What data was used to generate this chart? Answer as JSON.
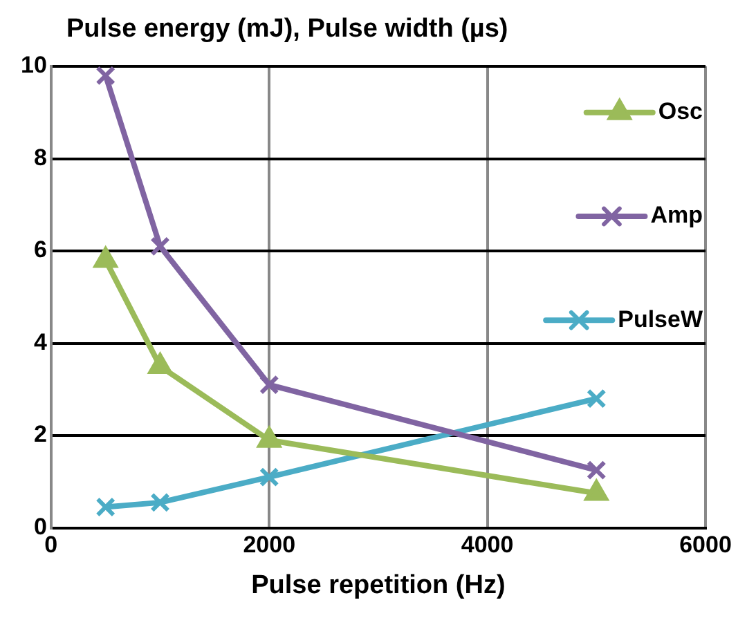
{
  "chart_data": {
    "type": "line",
    "ylabel": "Pulse energy (mJ), Pulse width (µs)",
    "xlabel": "Pulse repetition (Hz)",
    "x": [
      500,
      1000,
      2000,
      5000
    ],
    "series": [
      {
        "name": "Osc",
        "color": "#9bbb59",
        "marker": "triangle",
        "values": [
          5.8,
          3.5,
          1.9,
          0.75
        ]
      },
      {
        "name": "Amp",
        "color": "#8064a2",
        "marker": "cross",
        "values": [
          9.8,
          6.1,
          3.1,
          1.25
        ]
      },
      {
        "name": "PulseW",
        "color": "#4bacc6",
        "marker": "cross",
        "values": [
          0.45,
          0.55,
          1.1,
          2.8
        ]
      }
    ],
    "xlim": [
      0,
      6000
    ],
    "xticks": [
      0,
      2000,
      4000,
      6000
    ],
    "ylim": [
      0,
      10
    ],
    "yticks": [
      0,
      2,
      4,
      6,
      8,
      10
    ],
    "grid": true,
    "legend": "right",
    "line_style": "solid"
  }
}
